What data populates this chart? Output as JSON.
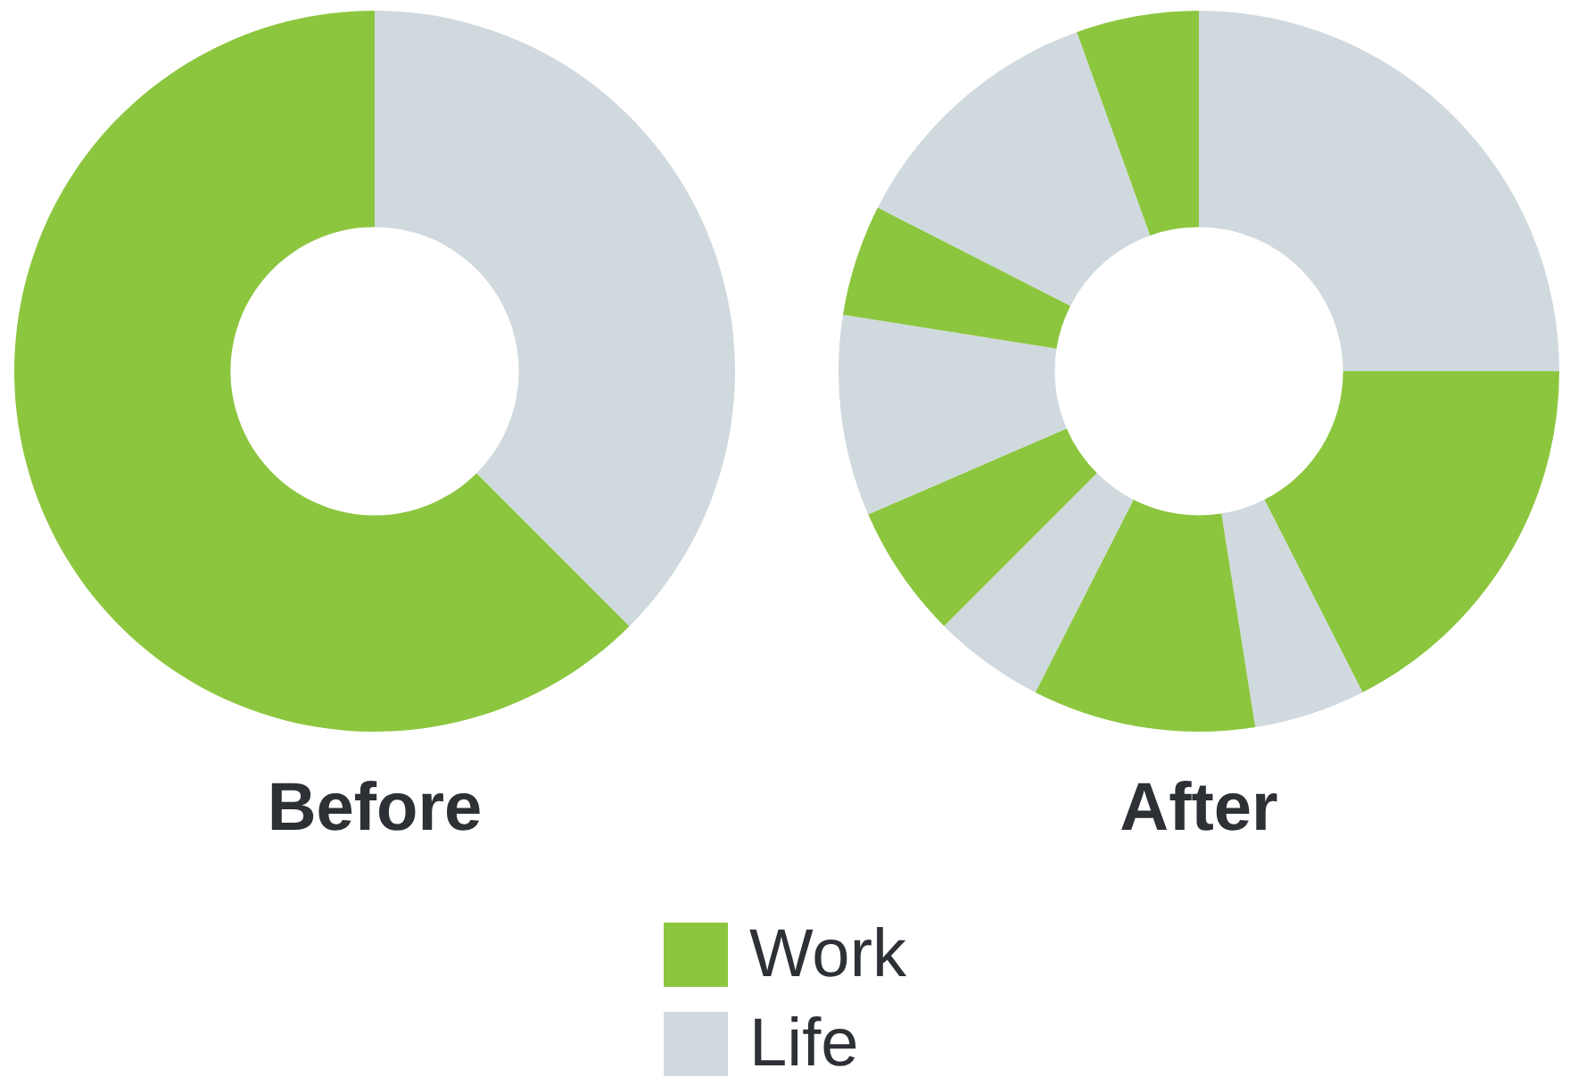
{
  "chart_data": [
    {
      "type": "donut",
      "title": "Before",
      "categories": [
        "Work",
        "Life"
      ],
      "values": [
        62.5,
        37.5
      ],
      "colors": [
        "#8cc63f",
        "#d0d9de"
      ],
      "legend": "bottom"
    },
    {
      "type": "donut",
      "title": "After",
      "categories": [
        null,
        null,
        null,
        null,
        null,
        null,
        null,
        null,
        null,
        null
      ],
      "values": [
        17.5,
        5,
        10,
        5,
        6,
        9,
        5,
        12,
        5.5,
        25
      ],
      "colors": [
        "#8cc63f",
        "#d0d9de",
        "#8cc63f",
        "#d0d9de",
        "#8cc63f",
        "#d0d9de",
        "#8cc63f",
        "#d0d9de",
        "#8cc63f",
        "#d0d9de"
      ]
    }
  ]
}
